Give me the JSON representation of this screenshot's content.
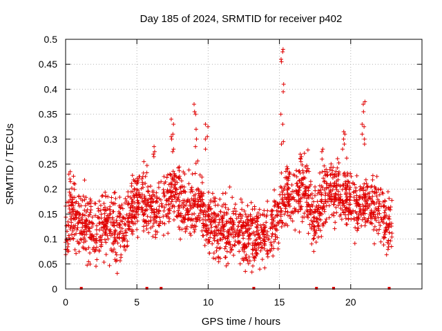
{
  "chart_data": {
    "type": "scatter",
    "title": "Day 185 of 2024, SRMTID for receiver p402",
    "xlabel": "GPS time / hours",
    "ylabel": "SRMTID / TECUs",
    "xlim": [
      0,
      25
    ],
    "ylim": [
      0,
      0.5
    ],
    "x_ticks": [
      "0",
      "5",
      "10",
      "15",
      "20"
    ],
    "y_ticks": [
      "0",
      "0.05",
      "0.1",
      "0.15",
      "0.2",
      "0.25",
      "0.3",
      "0.35",
      "0.4",
      "0.45",
      "0.5"
    ],
    "grid": true,
    "marker": "plus",
    "color": "#e00000",
    "trend_anchors": [
      {
        "x": 0.0,
        "y": 0.11
      },
      {
        "x": 0.3,
        "y": 0.16
      },
      {
        "x": 1.0,
        "y": 0.13
      },
      {
        "x": 2.0,
        "y": 0.12
      },
      {
        "x": 3.0,
        "y": 0.13
      },
      {
        "x": 4.0,
        "y": 0.11
      },
      {
        "x": 4.5,
        "y": 0.15
      },
      {
        "x": 5.2,
        "y": 0.19
      },
      {
        "x": 6.0,
        "y": 0.16
      },
      {
        "x": 7.0,
        "y": 0.17
      },
      {
        "x": 7.5,
        "y": 0.2
      },
      {
        "x": 8.5,
        "y": 0.16
      },
      {
        "x": 9.2,
        "y": 0.17
      },
      {
        "x": 10.0,
        "y": 0.14
      },
      {
        "x": 11.0,
        "y": 0.12
      },
      {
        "x": 12.0,
        "y": 0.12
      },
      {
        "x": 13.0,
        "y": 0.11
      },
      {
        "x": 14.0,
        "y": 0.1
      },
      {
        "x": 14.7,
        "y": 0.13
      },
      {
        "x": 15.5,
        "y": 0.2
      },
      {
        "x": 16.0,
        "y": 0.18
      },
      {
        "x": 16.8,
        "y": 0.2
      },
      {
        "x": 17.5,
        "y": 0.14
      },
      {
        "x": 18.5,
        "y": 0.2
      },
      {
        "x": 19.5,
        "y": 0.19
      },
      {
        "x": 20.5,
        "y": 0.16
      },
      {
        "x": 21.2,
        "y": 0.17
      },
      {
        "x": 22.0,
        "y": 0.16
      },
      {
        "x": 22.5,
        "y": 0.13
      },
      {
        "x": 22.9,
        "y": 0.11
      }
    ],
    "spread": 0.045,
    "point_count": 2200,
    "spikes": [
      {
        "x": 15.2,
        "values": [
          0.48,
          0.475,
          0.46,
          0.455,
          0.41,
          0.395,
          0.35,
          0.33,
          0.295,
          0.29
        ]
      },
      {
        "x": 9.1,
        "values": [
          0.37,
          0.355,
          0.35,
          0.32,
          0.3,
          0.285
        ]
      },
      {
        "x": 9.9,
        "values": [
          0.33,
          0.325,
          0.305,
          0.3,
          0.28
        ]
      },
      {
        "x": 7.5,
        "values": [
          0.34,
          0.33,
          0.31,
          0.305,
          0.3,
          0.28,
          0.275
        ]
      },
      {
        "x": 20.9,
        "values": [
          0.375,
          0.37,
          0.355,
          0.33,
          0.325,
          0.31,
          0.3,
          0.29
        ]
      },
      {
        "x": 19.5,
        "values": [
          0.315,
          0.31,
          0.3,
          0.29,
          0.28
        ]
      },
      {
        "x": 18.0,
        "values": [
          0.28,
          0.275,
          0.26
        ]
      },
      {
        "x": 6.2,
        "values": [
          0.285,
          0.275,
          0.27,
          0.265
        ]
      },
      {
        "x": 0.3,
        "values": [
          0.235,
          0.23,
          0.22,
          0.215
        ]
      },
      {
        "x": 16.5,
        "values": [
          0.27,
          0.265,
          0.26,
          0.255
        ]
      }
    ],
    "baseline_markers_x": [
      1.1,
      5.7,
      6.7,
      13.2,
      17.6,
      18.8,
      22.7
    ]
  }
}
